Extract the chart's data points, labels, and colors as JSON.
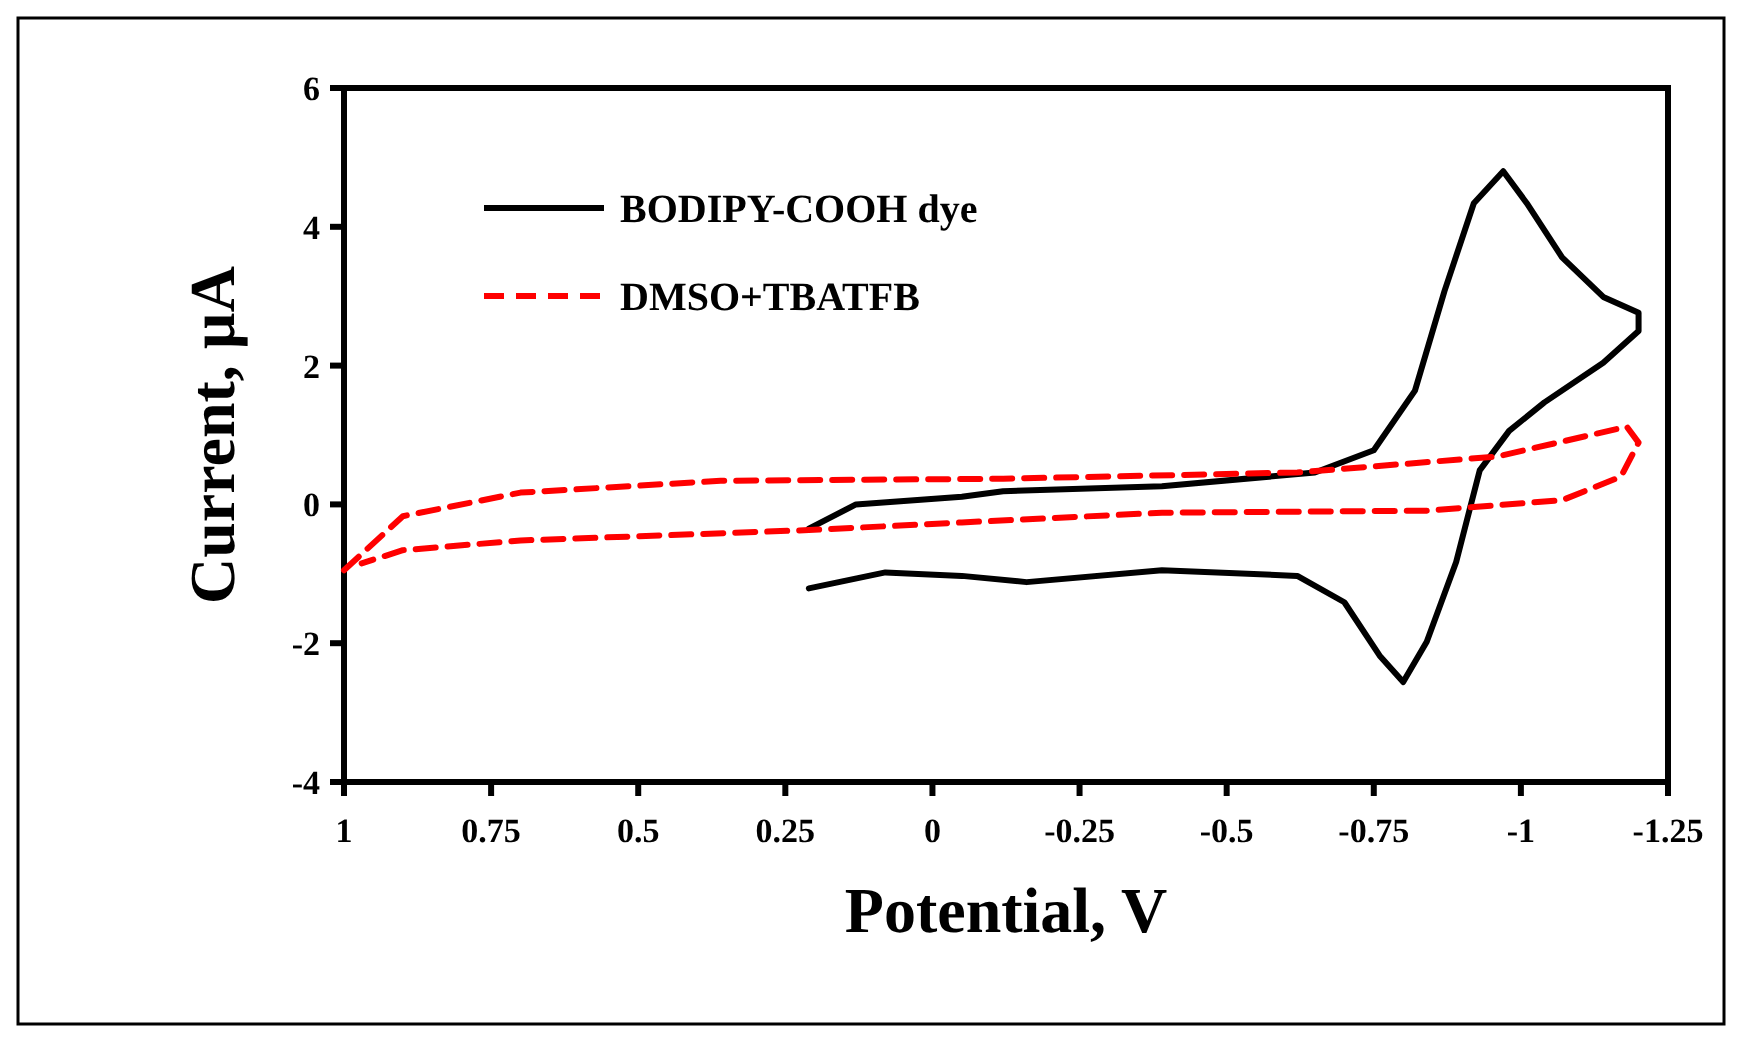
{
  "chart_data": {
    "type": "line",
    "xlabel": "Potential, V",
    "ylabel": "Current, µA",
    "xlim": [
      1,
      -1.25
    ],
    "xticks": [
      1,
      0.75,
      0.5,
      0.25,
      0,
      -0.25,
      -0.5,
      -0.75,
      -1,
      -1.25
    ],
    "ylim": [
      -4,
      6
    ],
    "yticks": [
      -4,
      -2,
      0,
      2,
      4,
      6
    ],
    "grid": false,
    "legend": "top left",
    "marker": "none",
    "series": [
      {
        "name": "BODIPY-COOH dye",
        "color": "#000000",
        "line_style": "solid",
        "x": [
          0.21,
          0.13,
          -0.05,
          -0.12,
          -0.39,
          -0.65,
          -0.75,
          -0.82,
          -0.87,
          -0.92,
          -0.97,
          -1.01,
          -1.07,
          -1.14,
          -1.2,
          -1.2,
          -1.14,
          -1.04,
          -0.98,
          -0.93,
          -0.89,
          -0.84,
          -0.8,
          -0.76,
          -0.7,
          -0.62,
          -0.39,
          -0.16,
          -0.05,
          0.08,
          0.21
        ],
        "values": [
          -0.35,
          0.0,
          0.11,
          0.19,
          0.26,
          0.46,
          0.78,
          1.64,
          3.07,
          4.34,
          4.8,
          4.34,
          3.56,
          2.99,
          2.76,
          2.5,
          2.04,
          1.47,
          1.06,
          0.49,
          -0.83,
          -1.98,
          -2.56,
          -2.18,
          -1.41,
          -1.03,
          -0.95,
          -1.12,
          -1.03,
          -0.98,
          -1.21
        ]
      },
      {
        "name": "DMSO+TBATFB",
        "color": "#ff0000",
        "line_style": "dashed",
        "x": [
          1,
          0.9,
          0.7,
          0.36,
          -0.12,
          -0.62,
          -0.96,
          -1.18,
          -1.2,
          -1.17,
          -1.07,
          -0.84,
          -0.39,
          -0.05,
          0.21,
          0.7,
          0.9,
          0.97
        ],
        "values": [
          -0.95,
          -0.17,
          0.17,
          0.34,
          0.37,
          0.46,
          0.69,
          1.12,
          0.89,
          0.4,
          0.06,
          -0.09,
          -0.12,
          -0.26,
          -0.37,
          -0.52,
          -0.66,
          -0.85
        ]
      }
    ]
  }
}
